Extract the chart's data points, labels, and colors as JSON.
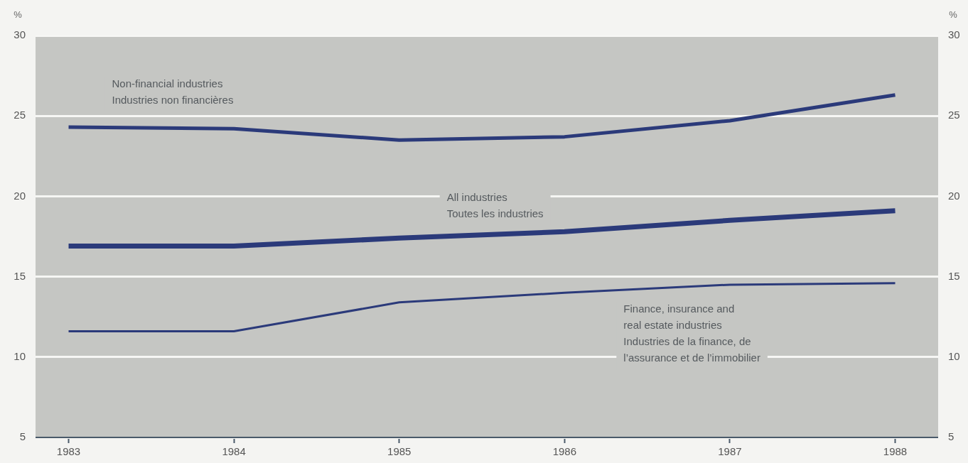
{
  "chart_data": {
    "type": "line",
    "ylabel": "%",
    "y2label": "%",
    "x": [
      1983,
      1984,
      1985,
      1986,
      1987,
      1988
    ],
    "xlim": [
      1982.8,
      1988.26
    ],
    "xticks": [
      1983,
      1984,
      1985,
      1986,
      1987,
      1988
    ],
    "ylim": [
      5,
      30
    ],
    "yticks": [
      5,
      10,
      15,
      20,
      25,
      30
    ],
    "y2lim": [
      5,
      30
    ],
    "y2ticks": [
      5,
      10,
      15,
      20,
      25,
      30
    ],
    "grid": "y",
    "legend": false,
    "marker": "none",
    "line_style": "solid",
    "series": [
      {
        "name": "Non-financial industries\nIndustries non financières",
        "color": "#2b3a7a",
        "values": [
          24.3,
          24.2,
          23.5,
          23.7,
          24.7,
          26.3
        ]
      },
      {
        "name": "All industries\nToutes les industries",
        "color": "#2b3a7a",
        "values": [
          16.9,
          16.9,
          17.4,
          17.8,
          18.5,
          19.1
        ]
      },
      {
        "name": "Finance, insurance and\nreal estate industries\nIndustries de la finance, de\nl’assurance et de l’immobilier",
        "color": "#2b3a7a",
        "values": [
          11.6,
          11.6,
          13.4,
          14.0,
          14.5,
          14.6
        ]
      }
    ]
  }
}
